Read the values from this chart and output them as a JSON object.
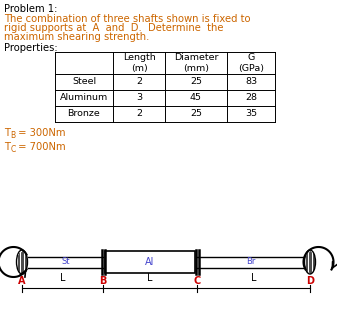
{
  "title": "Problem 1:",
  "body_lines": [
    "The combination of three shafts shown is fixed to",
    "rigid supports at  A  and  D.  Determine  the",
    "maximum shearing strength."
  ],
  "properties_label": "Properties:",
  "table_headers": [
    "",
    "Length\n(m)",
    "Diameter\n(mm)",
    "G\n(GPa)"
  ],
  "table_rows": [
    [
      "Steel",
      "2",
      "25",
      "83"
    ],
    [
      "Aluminum",
      "3",
      "45",
      "28"
    ],
    [
      "Bronze",
      "2",
      "25",
      "35"
    ]
  ],
  "point_labels": [
    "A",
    "B",
    "C",
    "D"
  ],
  "shaft_label": "Al",
  "steel_label": "St",
  "bronze_label": "Br",
  "text_color": "#cc6600",
  "black_color": "#000000",
  "red_color": "#cc0000",
  "blue_color": "#4444cc",
  "bg_color": "#ffffff",
  "title_color": "#000000",
  "font_size_body": 7.2,
  "font_size_table": 6.8,
  "font_size_diagram": 6.5
}
